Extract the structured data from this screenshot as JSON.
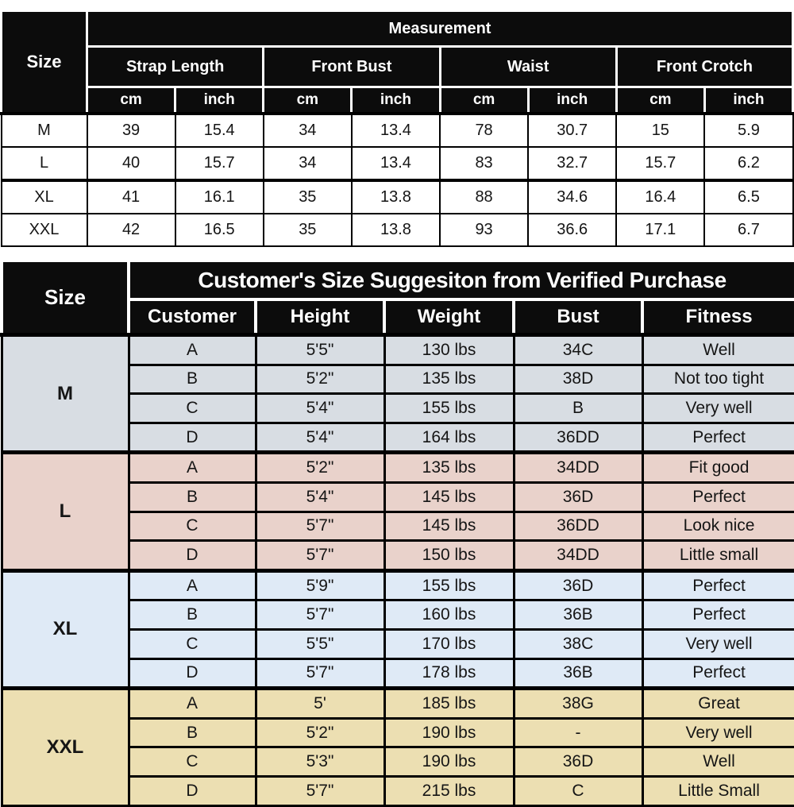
{
  "measurement_table": {
    "size_header": "Size",
    "title": "Measurement",
    "groups": [
      "Strap Length",
      "Front Bust",
      "Waist",
      "Front Crotch"
    ],
    "units": [
      "cm",
      "inch"
    ],
    "rows": [
      {
        "size": "M",
        "values": [
          "39",
          "15.4",
          "34",
          "13.4",
          "78",
          "30.7",
          "15",
          "5.9"
        ]
      },
      {
        "size": "L",
        "values": [
          "40",
          "15.7",
          "34",
          "13.4",
          "83",
          "32.7",
          "15.7",
          "6.2"
        ]
      },
      {
        "size": "XL",
        "values": [
          "41",
          "16.1",
          "35",
          "13.8",
          "88",
          "34.6",
          "16.4",
          "6.5"
        ]
      },
      {
        "size": "XXL",
        "values": [
          "42",
          "16.5",
          "35",
          "13.8",
          "93",
          "36.6",
          "17.1",
          "6.7"
        ]
      }
    ]
  },
  "suggestion_table": {
    "size_header": "Size",
    "title": "Customer's Size Suggesiton from Verified Purchase",
    "columns": [
      "Customer",
      "Height",
      "Weight",
      "Bust",
      "Fitness"
    ],
    "sections": [
      {
        "size": "M",
        "bg": "#d8dde3",
        "rows": [
          [
            "A",
            "5'5\"",
            "130 lbs",
            "34C",
            "Well"
          ],
          [
            "B",
            "5'2\"",
            "135 lbs",
            "38D",
            "Not too tight"
          ],
          [
            "C",
            "5'4\"",
            "155 lbs",
            "B",
            "Very well"
          ],
          [
            "D",
            "5'4\"",
            "164 lbs",
            "36DD",
            "Perfect"
          ]
        ]
      },
      {
        "size": "L",
        "bg": "#e9d2cb",
        "rows": [
          [
            "A",
            "5'2\"",
            "135 lbs",
            "34DD",
            "Fit good"
          ],
          [
            "B",
            "5'4\"",
            "145 lbs",
            "36D",
            "Perfect"
          ],
          [
            "C",
            "5'7\"",
            "145 lbs",
            "36DD",
            "Look nice"
          ],
          [
            "D",
            "5'7\"",
            "150 lbs",
            "34DD",
            "Little small"
          ]
        ]
      },
      {
        "size": "XL",
        "bg": "#dfeaf6",
        "rows": [
          [
            "A",
            "5'9\"",
            "155 lbs",
            "36D",
            "Perfect"
          ],
          [
            "B",
            "5'7\"",
            "160 lbs",
            "36B",
            "Perfect"
          ],
          [
            "C",
            "5'5\"",
            "170 lbs",
            "38C",
            "Very well"
          ],
          [
            "D",
            "5'7\"",
            "178 lbs",
            "36B",
            "Perfect"
          ]
        ]
      },
      {
        "size": "XXL",
        "bg": "#ecdfb2",
        "rows": [
          [
            "A",
            "5'",
            "185 lbs",
            "38G",
            "Great"
          ],
          [
            "B",
            "5'2\"",
            "190 lbs",
            "-",
            "Very well"
          ],
          [
            "C",
            "5'3\"",
            "190 lbs",
            "36D",
            "Well"
          ],
          [
            "D",
            "5'7\"",
            "215 lbs",
            "C",
            "Little Small"
          ]
        ]
      }
    ]
  }
}
